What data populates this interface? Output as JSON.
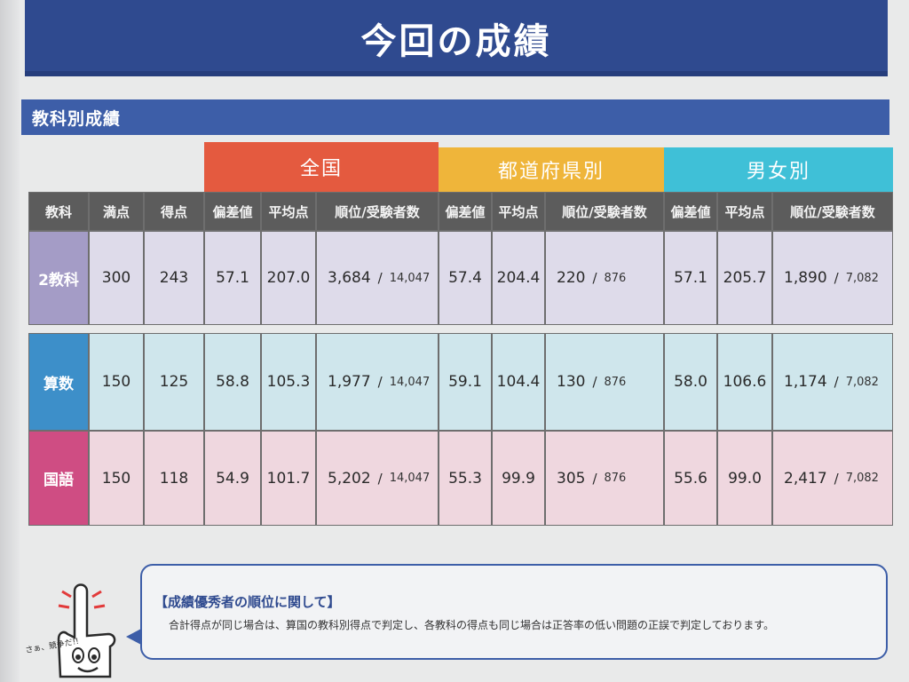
{
  "page_title": "今回の成績",
  "section_title": "教科別成績",
  "groups": {
    "national": "全国",
    "prefecture": "都道府県別",
    "gender": "男女別"
  },
  "headers": {
    "subject": "教科",
    "full_score": "満点",
    "score": "得点",
    "deviation": "偏差値",
    "average": "平均点",
    "rank": "順位/受験者数"
  },
  "rows": [
    {
      "subject": "2教科",
      "full_score": "300",
      "score": "243",
      "national": {
        "deviation": "57.1",
        "average": "207.0",
        "rank": "3,684",
        "total": "14,047"
      },
      "prefecture": {
        "deviation": "57.4",
        "average": "204.4",
        "rank": "220",
        "total": "876"
      },
      "gender": {
        "deviation": "57.1",
        "average": "205.7",
        "rank": "1,890",
        "total": "7,082"
      }
    },
    {
      "subject": "算数",
      "full_score": "150",
      "score": "125",
      "national": {
        "deviation": "58.8",
        "average": "105.3",
        "rank": "1,977",
        "total": "14,047"
      },
      "prefecture": {
        "deviation": "59.1",
        "average": "104.4",
        "rank": "130",
        "total": "876"
      },
      "gender": {
        "deviation": "58.0",
        "average": "106.6",
        "rank": "1,174",
        "total": "7,082"
      }
    },
    {
      "subject": "国語",
      "full_score": "150",
      "score": "118",
      "national": {
        "deviation": "54.9",
        "average": "101.7",
        "rank": "5,202",
        "total": "14,047"
      },
      "prefecture": {
        "deviation": "55.3",
        "average": "99.9",
        "rank": "305",
        "total": "876"
      },
      "gender": {
        "deviation": "55.6",
        "average": "99.0",
        "rank": "2,417",
        "total": "7,082"
      }
    }
  ],
  "note": {
    "heading": "【成績優秀者の順位に関して】",
    "body": "合計得点が同じ場合は、算国の教科別得点で判定し、各教科の得点も同じ場合は正答率の低い問題の正誤で判定しております。"
  },
  "mascot_label": "さぁ、競争だ!!",
  "colors": {
    "banner": "#2f4a8f",
    "section": "#3d5ea8",
    "national": "#e45a3f",
    "prefecture": "#efb53a",
    "gender": "#3fc0d7",
    "subject_2": "#a49cc6",
    "subject_math": "#3d8fc9",
    "subject_japanese": "#cf4d83"
  }
}
